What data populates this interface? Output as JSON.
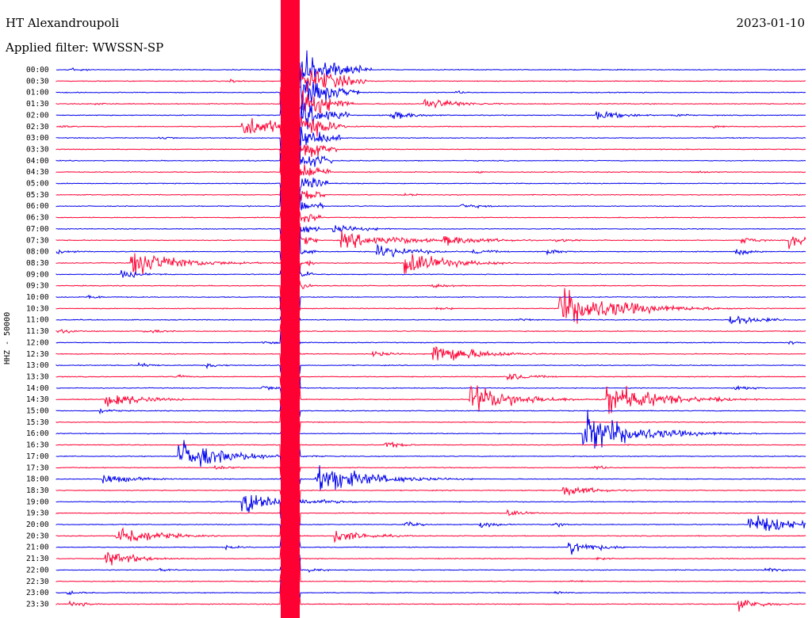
{
  "header": {
    "station": "HT Alexandroupoli",
    "date": "2023-01-10",
    "filter": "Applied filter: WWSSN-SP"
  },
  "axis": {
    "ylabel": "HHZ - 50000"
  },
  "colors": {
    "blue": "#0000ee",
    "red": "#ff0033"
  },
  "rows": [
    "00:00",
    "00:30",
    "01:00",
    "01:30",
    "02:00",
    "02:30",
    "03:00",
    "03:30",
    "04:00",
    "04:30",
    "05:00",
    "05:30",
    "06:00",
    "06:30",
    "07:00",
    "07:30",
    "08:00",
    "08:30",
    "09:00",
    "09:30",
    "10:00",
    "10:30",
    "11:00",
    "11:30",
    "12:00",
    "12:30",
    "13:00",
    "13:30",
    "14:00",
    "14:30",
    "15:00",
    "15:30",
    "16:00",
    "16:30",
    "17:00",
    "17:30",
    "18:00",
    "18:30",
    "19:00",
    "19:30",
    "20:00",
    "20:30",
    "21:00",
    "21:30",
    "22:00",
    "22:30",
    "23:00",
    "23:30"
  ]
}
